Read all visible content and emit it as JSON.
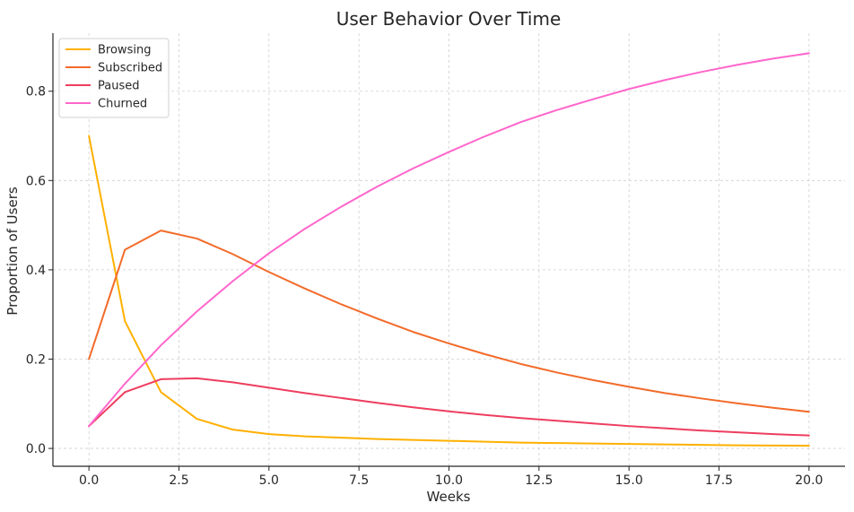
{
  "chart_data": {
    "type": "line",
    "title": "User Behavior Over Time",
    "xlabel": "Weeks",
    "ylabel": "Proportion of Users",
    "xlim": [
      -1,
      21
    ],
    "ylim": [
      -0.04,
      0.93
    ],
    "xticks": [
      0.0,
      2.5,
      5.0,
      7.5,
      10.0,
      12.5,
      15.0,
      17.5,
      20.0
    ],
    "xtick_labels": [
      "0.0",
      "2.5",
      "5.0",
      "7.5",
      "10.0",
      "12.5",
      "15.0",
      "17.5",
      "20.0"
    ],
    "yticks": [
      0.0,
      0.2,
      0.4,
      0.6,
      0.8
    ],
    "ytick_labels": [
      "0.0",
      "0.2",
      "0.4",
      "0.6",
      "0.8"
    ],
    "grid": true,
    "legend": "top-left",
    "x": [
      0,
      1,
      2,
      3,
      4,
      5,
      6,
      7,
      8,
      9,
      10,
      11,
      12,
      13,
      14,
      15,
      16,
      17,
      18,
      19,
      20
    ],
    "series": [
      {
        "name": "Browsing",
        "color": "#FFB000",
        "values": [
          0.7,
          0.285,
          0.126,
          0.066,
          0.042,
          0.032,
          0.027,
          0.024,
          0.021,
          0.019,
          0.017,
          0.015,
          0.013,
          0.012,
          0.011,
          0.01,
          0.009,
          0.008,
          0.007,
          0.0065,
          0.006
        ]
      },
      {
        "name": "Subscribed",
        "color": "#F26B2A",
        "values": [
          0.2,
          0.445,
          0.488,
          0.47,
          0.435,
          0.395,
          0.358,
          0.323,
          0.291,
          0.261,
          0.235,
          0.211,
          0.189,
          0.17,
          0.153,
          0.138,
          0.124,
          0.112,
          0.101,
          0.091,
          0.082
        ]
      },
      {
        "name": "Paused",
        "color": "#EE3E5E",
        "values": [
          0.05,
          0.126,
          0.155,
          0.157,
          0.148,
          0.136,
          0.124,
          0.113,
          0.102,
          0.092,
          0.083,
          0.075,
          0.068,
          0.062,
          0.056,
          0.05,
          0.045,
          0.04,
          0.036,
          0.032,
          0.029
        ]
      },
      {
        "name": "Churned",
        "color": "#FF66CC",
        "values": [
          0.05,
          0.145,
          0.231,
          0.307,
          0.375,
          0.437,
          0.492,
          0.541,
          0.586,
          0.627,
          0.664,
          0.699,
          0.731,
          0.758,
          0.782,
          0.805,
          0.825,
          0.843,
          0.859,
          0.873,
          0.885
        ]
      }
    ]
  }
}
